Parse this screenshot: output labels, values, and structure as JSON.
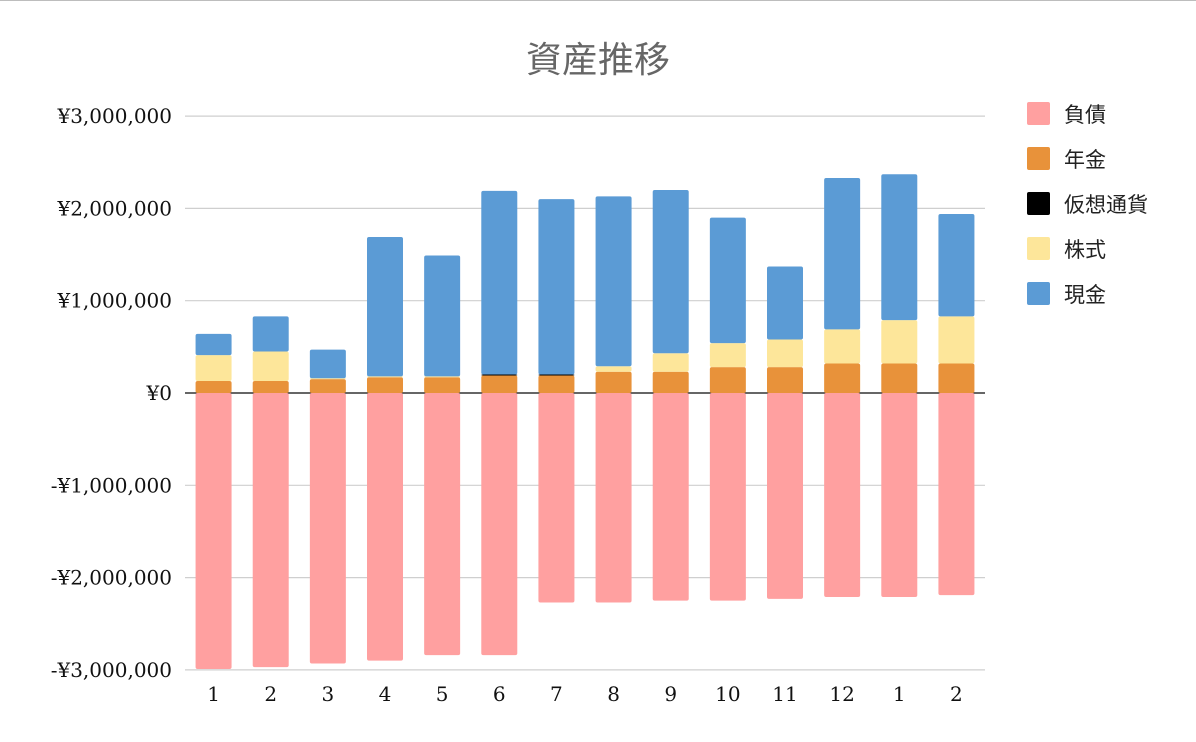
{
  "chart_data": {
    "type": "bar",
    "stacked": true,
    "title": "資産推移",
    "xlabel": "",
    "ylabel": "",
    "categories": [
      "1",
      "2",
      "3",
      "4",
      "5",
      "6",
      "7",
      "8",
      "9",
      "10",
      "11",
      "12",
      "1",
      "2"
    ],
    "ylim": [
      -3000000,
      3000000
    ],
    "y_ticks": [
      {
        "value": 3000000,
        "label": "¥3,000,000"
      },
      {
        "value": 2000000,
        "label": "¥2,000,000"
      },
      {
        "value": 1000000,
        "label": "¥1,000,000"
      },
      {
        "value": 0,
        "label": "¥0"
      },
      {
        "value": -1000000,
        "label": "-¥1,000,000"
      },
      {
        "value": -2000000,
        "label": "-¥2,000,000"
      },
      {
        "value": -3000000,
        "label": "-¥3,000,000"
      }
    ],
    "grid": true,
    "legend_position": "right",
    "series": [
      {
        "name": "負債",
        "color": "#ffa0a0",
        "values": [
          -2990000,
          -2970000,
          -2930000,
          -2900000,
          -2840000,
          -2840000,
          -2270000,
          -2270000,
          -2250000,
          -2250000,
          -2230000,
          -2210000,
          -2210000,
          -2190000
        ]
      },
      {
        "name": "年金",
        "color": "#e8923a",
        "values": [
          130000,
          130000,
          150000,
          170000,
          170000,
          190000,
          190000,
          230000,
          230000,
          280000,
          280000,
          320000,
          320000,
          320000
        ]
      },
      {
        "name": "仮想通貨",
        "color": "#000000",
        "values": [
          0,
          0,
          0,
          0,
          0,
          10000,
          10000,
          0,
          0,
          0,
          0,
          0,
          0,
          0
        ]
      },
      {
        "name": "株式",
        "color": "#fde69a",
        "values": [
          280000,
          320000,
          10000,
          10000,
          10000,
          0,
          0,
          60000,
          200000,
          260000,
          300000,
          370000,
          470000,
          510000
        ]
      },
      {
        "name": "現金",
        "color": "#5b9bd5",
        "values": [
          230000,
          380000,
          310000,
          1510000,
          1310000,
          1990000,
          1900000,
          1840000,
          1770000,
          1360000,
          790000,
          1640000,
          1580000,
          1110000
        ]
      }
    ]
  }
}
